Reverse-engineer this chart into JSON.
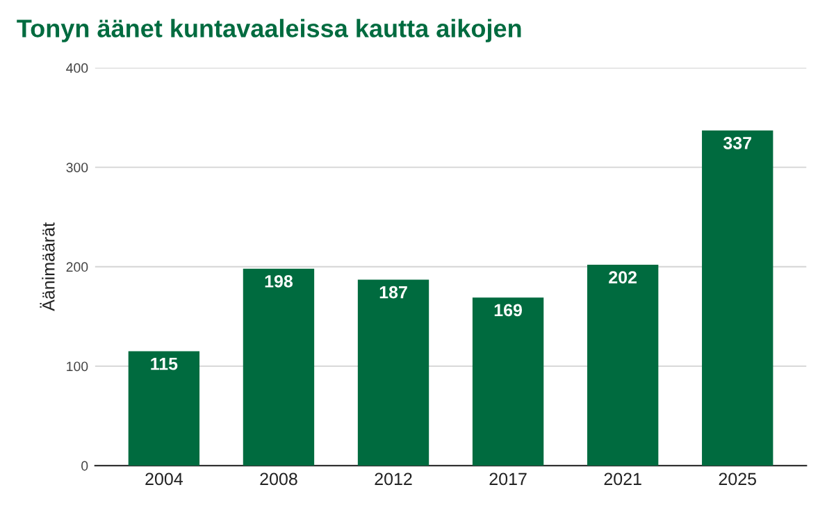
{
  "chart_data": {
    "type": "bar",
    "title": "Tonyn äänet kuntavaaleissa kautta aikojen",
    "ylabel": "Äänimäärät",
    "categories": [
      "2004",
      "2008",
      "2012",
      "2017",
      "2021",
      "2025"
    ],
    "values": [
      115,
      198,
      187,
      169,
      202,
      337
    ],
    "color": "#006b3f",
    "ylim": [
      0,
      400
    ],
    "yticks": [
      0,
      100,
      200,
      300,
      400
    ],
    "grid": "y",
    "data_labels": true
  }
}
